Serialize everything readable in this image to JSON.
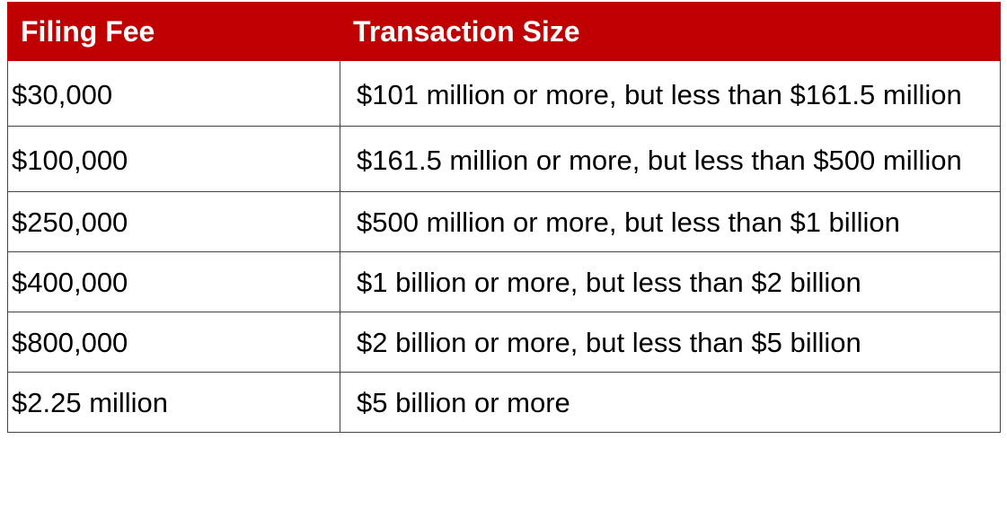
{
  "table": {
    "header": [
      "Filing Fee",
      "Transaction Size"
    ],
    "rows": [
      [
        "$30,000",
        "$101 million or more, but less than $161.5 million"
      ],
      [
        "$100,000",
        "$161.5 million or more, but less than $500 million"
      ],
      [
        "$250,000",
        "$500 million or more, but less than $1 billion"
      ],
      [
        "$400,000",
        "$1 billion or more, but less than $2 billion"
      ],
      [
        "$800,000",
        "$2 billion or more, but less than $5 billion"
      ],
      [
        "$2.25 million",
        "$5 billion or more"
      ]
    ]
  }
}
